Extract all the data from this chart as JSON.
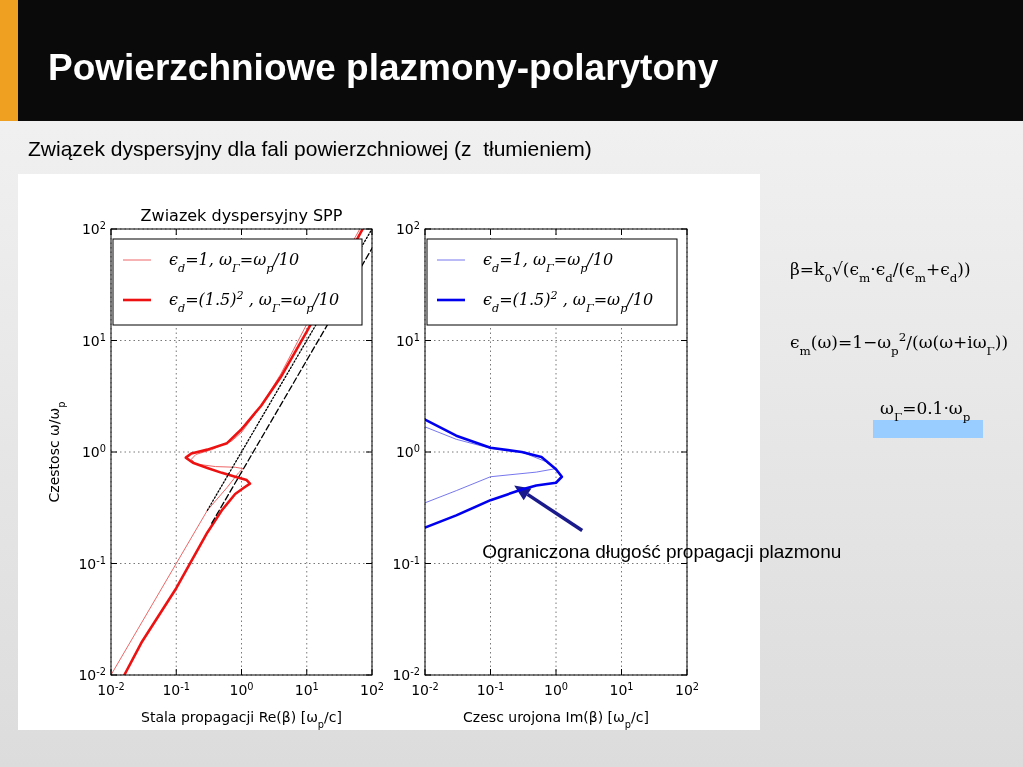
{
  "chart_data": [
    {
      "type": "line",
      "title": "Zwiazek dyspersyjny SPP",
      "xlabel": "Stala propagacji Re(β) [ω$_{p}$/c]",
      "ylabel": "Czestosc ω/ω$_{p}$",
      "log": "xy",
      "grid": true,
      "legend": "top",
      "xlim": [
        0.01,
        100
      ],
      "ylim": [
        0.01,
        100
      ],
      "xticks": [
        {
          "value": 0.01,
          "label": "10$^{-2}$"
        },
        {
          "value": 0.1,
          "label": "10$^{-1}$"
        },
        {
          "value": 1,
          "label": "10$^{0}$"
        },
        {
          "value": 10,
          "label": "10$^{1}$"
        },
        {
          "value": 100,
          "label": "10$^{2}$"
        }
      ],
      "yticks": [
        {
          "value": 0.01,
          "label": "10$^{-2}$"
        },
        {
          "value": 0.1,
          "label": "10$^{-1}$"
        },
        {
          "value": 1,
          "label": "10$^{0}$"
        },
        {
          "value": 10,
          "label": "10$^{1}$"
        },
        {
          "value": 100,
          "label": "10$^{2}$"
        }
      ],
      "series": [
        {
          "color": "#000000",
          "line_style": "dotted",
          "x": [
            0.3,
            100
          ],
          "values": [
            0.3,
            100
          ]
        },
        {
          "color": "#000000",
          "line_style": "dashed",
          "x": [
            0.35,
            100
          ],
          "values": [
            0.23,
            67
          ]
        },
        {
          "name": "ϵ$_{d}$=1, ω$_{Γ}$=ω$_{p}$/10",
          "color": "#ee6666",
          "line_style": "solid",
          "x": [
            0.01,
            0.1,
            0.3,
            0.6,
            0.9,
            1.05,
            0.8,
            0.4,
            0.2,
            0.17,
            0.2,
            0.35,
            0.7,
            1,
            2,
            4,
            10,
            65
          ],
          "values": [
            0.01,
            0.1,
            0.3,
            0.48,
            0.65,
            0.71,
            0.73,
            0.74,
            0.78,
            0.86,
            0.95,
            1.05,
            1.25,
            1.5,
            2.6,
            5,
            14,
            100
          ]
        },
        {
          "name": "ϵ$_{d}$=(1.5)$^{2}$ , ω$_{Γ}$=ω$_{p}$/10",
          "color": "#ee1111",
          "line_style": "solid",
          "x": [
            0.016,
            0.03,
            0.1,
            0.3,
            0.5,
            0.8,
            1.1,
            1.35,
            1.2,
            0.8,
            0.5,
            0.3,
            0.18,
            0.14,
            0.17,
            0.3,
            0.6,
            1,
            2,
            4,
            10,
            72
          ],
          "values": [
            0.01,
            0.02,
            0.06,
            0.19,
            0.3,
            0.42,
            0.48,
            0.52,
            0.56,
            0.6,
            0.65,
            0.72,
            0.8,
            0.89,
            0.97,
            1.05,
            1.2,
            1.6,
            2.6,
            4.7,
            12,
            100
          ]
        }
      ]
    },
    {
      "type": "line",
      "xlabel": "Czesc urojona Im(β) [ω$_{p}$/c]",
      "log": "xy",
      "grid": true,
      "legend": "top",
      "xlim": [
        0.01,
        100
      ],
      "ylim": [
        0.01,
        100
      ],
      "xticks": [
        {
          "value": 0.01,
          "label": "10$^{-2}$"
        },
        {
          "value": 0.1,
          "label": "10$^{-1}$"
        },
        {
          "value": 1,
          "label": "10$^{0}$"
        },
        {
          "value": 10,
          "label": "10$^{1}$"
        },
        {
          "value": 100,
          "label": "10$^{2}$"
        }
      ],
      "yticks": [
        {
          "value": 0.01,
          "label": "10$^{-2}$"
        },
        {
          "value": 0.1,
          "label": "10$^{-1}$"
        },
        {
          "value": 1,
          "label": "10$^{0}$"
        },
        {
          "value": 10,
          "label": "10$^{1}$"
        },
        {
          "value": 100,
          "label": "10$^{2}$"
        }
      ],
      "annotations": [
        {
          "text": "Ograniczona długość propagacji plazmonu",
          "x": 0.23,
          "y": 0.5
        }
      ],
      "series": [
        {
          "name": "ϵ$_{d}$=1, ω$_{Γ}$=ω$_{p}$/10",
          "color": "#7777ee",
          "line_style": "solid",
          "x": [
            0.01,
            0.03,
            0.1,
            0.3,
            0.7,
            1.0,
            0.5,
            0.1,
            0.03,
            0.01
          ],
          "values": [
            1.68,
            1.3,
            1.08,
            1.0,
            0.82,
            0.71,
            0.66,
            0.6,
            0.45,
            0.35
          ]
        },
        {
          "name": "ϵ$_{d}$=(1.5)$^{2}$ , ω$_{Γ}$=ω$_{p}$/10",
          "color": "#0000ee",
          "line_style": "solid",
          "x": [
            0.01,
            0.03,
            0.1,
            0.3,
            0.6,
            1.0,
            1.23,
            1.0,
            0.5,
            0.3,
            0.1,
            0.03,
            0.01
          ],
          "values": [
            1.95,
            1.4,
            1.09,
            1.0,
            0.9,
            0.7,
            0.6,
            0.53,
            0.5,
            0.46,
            0.37,
            0.27,
            0.21
          ]
        }
      ]
    },
    {
      "type": "other",
      "title": "Powierzchniowe plazmony-polarytony",
      "subtitle": "Związek dyspersyjny dla fali powierzchniowej (z  tłumieniem)",
      "annotations": [
        "β=k$_{0}$√(ϵ$_{m}$·ϵ$_{d}$/(ϵ$_{m}$+ϵ$_{d}$))",
        "ϵ$_{m}$(ω)=1−ω$_{p}$$^{2}$/(ω(ω+iω$_{Γ}$))",
        "ω$_{Γ}$=0.1·ω$_{p}$"
      ]
    }
  ]
}
